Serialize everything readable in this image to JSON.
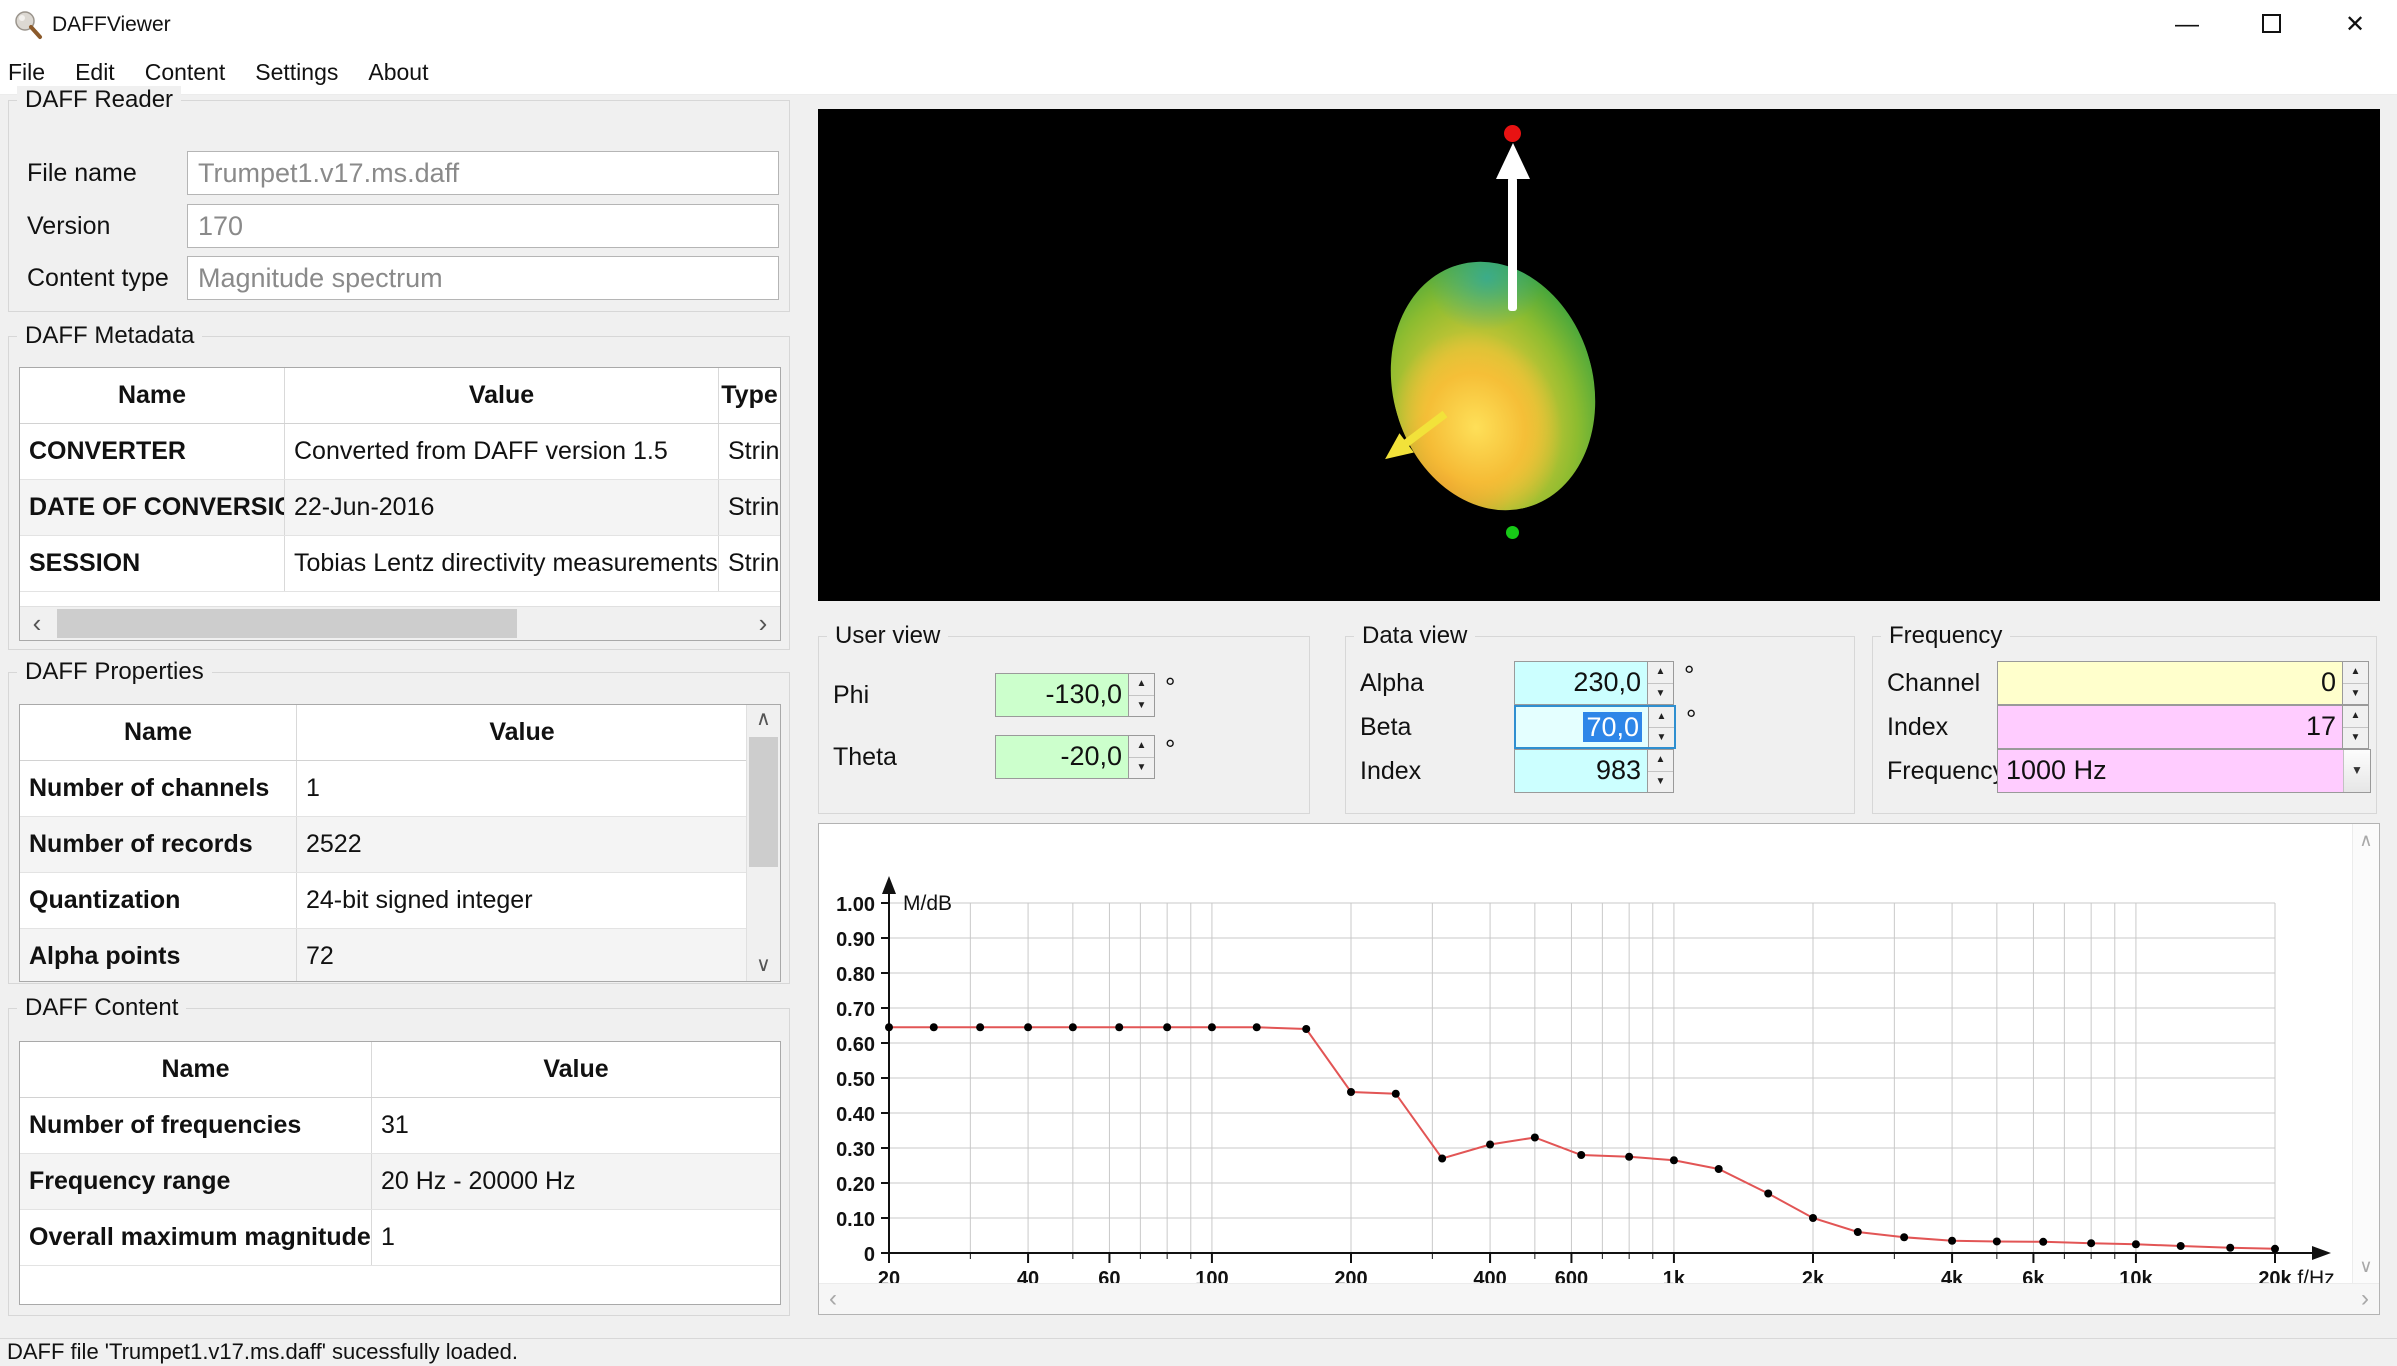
{
  "window": {
    "title": "DAFFViewer"
  },
  "menu": {
    "items": [
      "File",
      "Edit",
      "Content",
      "Settings",
      "About"
    ]
  },
  "icons": {
    "minimize": "—",
    "close": "✕",
    "spin_up": "▲",
    "spin_down": "▼",
    "combo_arrow": "▼",
    "scroll_left": "‹",
    "scroll_right": "›",
    "scroll_up": "∧",
    "scroll_down": "∨"
  },
  "reader": {
    "title": "DAFF Reader",
    "file_label": "File name",
    "file_value": "Trumpet1.v17.ms.daff",
    "version_label": "Version",
    "version_value": "170",
    "content_label": "Content type",
    "content_value": "Magnitude spectrum"
  },
  "metadata": {
    "title": "DAFF Metadata",
    "columns": [
      "Name",
      "Value",
      "Type"
    ],
    "rows": [
      [
        "CONVERTER",
        "Converted from DAFF version 1.5",
        "String"
      ],
      [
        "DATE OF CONVERSION",
        "22-Jun-2016",
        "String"
      ],
      [
        "SESSION",
        "Tobias Lentz directivity measurements",
        "String"
      ]
    ]
  },
  "properties": {
    "title": "DAFF Properties",
    "columns": [
      "Name",
      "Value"
    ],
    "rows": [
      [
        "Number of channels",
        "1"
      ],
      [
        "Number of records",
        "2522"
      ],
      [
        "Quantization",
        "24-bit signed integer"
      ],
      [
        "Alpha points",
        "72"
      ]
    ]
  },
  "content": {
    "title": "DAFF Content",
    "columns": [
      "Name",
      "Value"
    ],
    "rows": [
      [
        "Number of frequencies",
        "31"
      ],
      [
        "Frequency range",
        "20 Hz - 20000 Hz"
      ],
      [
        "Overall maximum magnitude",
        "1"
      ]
    ]
  },
  "viewport": {
    "balloon_colors": [
      "#eec83c",
      "#8cbc30",
      "#2f9b50",
      "#e88226",
      "#2daaa5"
    ],
    "up_arrow_color": "#ffffff",
    "direction_arrow_color": "#f2e23a",
    "top_dot_color": "#e81212",
    "bottom_dot_color": "#17c917"
  },
  "user_view": {
    "title": "User view",
    "phi_label": "Phi",
    "phi_value": "-130,0",
    "theta_label": "Theta",
    "theta_value": "-20,0",
    "degree": "°"
  },
  "data_view": {
    "title": "Data view",
    "alpha_label": "Alpha",
    "alpha_value": "230,0",
    "beta_label": "Beta",
    "beta_value": "70,0",
    "index_label": "Index",
    "index_value": "983",
    "degree": "°"
  },
  "frequency": {
    "title": "Frequency",
    "channel_label": "Channel",
    "channel_value": "0",
    "index_label": "Index",
    "index_value": "17",
    "frequency_label": "Frequency",
    "frequency_value": "1000 Hz"
  },
  "status": {
    "text": "DAFF file 'Trumpet1.v17.ms.daff' sucessfully loaded."
  },
  "colors": {
    "field_green": "#ccffcc",
    "field_cyan": "#ccffff",
    "field_cyan_focused": "#e4ffff",
    "field_yellow": "#ffffcc",
    "field_pink": "#ffccff",
    "selection_blue": "#2e86e8"
  },
  "chart_data": {
    "type": "line",
    "title": "",
    "xlabel": "f/Hz",
    "ylabel": "M/dB",
    "x_scale": "log",
    "xlim": [
      20,
      20000
    ],
    "ylim": [
      0,
      1.05
    ],
    "grid": true,
    "x": [
      20,
      25,
      31.5,
      40,
      50,
      63,
      80,
      100,
      125,
      160,
      200,
      250,
      315,
      400,
      500,
      630,
      800,
      1000,
      1250,
      1600,
      2000,
      2500,
      3150,
      4000,
      5000,
      6300,
      8000,
      10000,
      12500,
      16000,
      20000
    ],
    "series": [
      {
        "name": "magnitude",
        "values": [
          0.645,
          0.645,
          0.645,
          0.645,
          0.645,
          0.645,
          0.645,
          0.645,
          0.645,
          0.64,
          0.46,
          0.455,
          0.27,
          0.31,
          0.33,
          0.28,
          0.275,
          0.265,
          0.24,
          0.17,
          0.1,
          0.06,
          0.045,
          0.035,
          0.033,
          0.032,
          0.028,
          0.025,
          0.02,
          0.015,
          0.012
        ]
      }
    ],
    "x_ticks": [
      {
        "f": 20,
        "label": "20"
      },
      {
        "f": 40,
        "label": "40"
      },
      {
        "f": 60,
        "label": "60"
      },
      {
        "f": 100,
        "label": "100"
      },
      {
        "f": 200,
        "label": "200"
      },
      {
        "f": 400,
        "label": "400"
      },
      {
        "f": 600,
        "label": "600"
      },
      {
        "f": 1000,
        "label": "1k"
      },
      {
        "f": 2000,
        "label": "2k"
      },
      {
        "f": 4000,
        "label": "4k"
      },
      {
        "f": 6000,
        "label": "6k"
      },
      {
        "f": 10000,
        "label": "10k"
      },
      {
        "f": 20000,
        "label": "20k"
      }
    ],
    "y_ticks": [
      {
        "v": 0,
        "label": "0"
      },
      {
        "v": 0.1,
        "label": "0.10"
      },
      {
        "v": 0.2,
        "label": "0.20"
      },
      {
        "v": 0.3,
        "label": "0.30"
      },
      {
        "v": 0.4,
        "label": "0.40"
      },
      {
        "v": 0.5,
        "label": "0.50"
      },
      {
        "v": 0.6,
        "label": "0.60"
      },
      {
        "v": 0.7,
        "label": "0.70"
      },
      {
        "v": 0.8,
        "label": "0.80"
      },
      {
        "v": 0.9,
        "label": "0.90"
      },
      {
        "v": 1.0,
        "label": "1.00"
      }
    ],
    "line_color": "#e25555",
    "point_color": "#000000",
    "legend_position": "none"
  }
}
